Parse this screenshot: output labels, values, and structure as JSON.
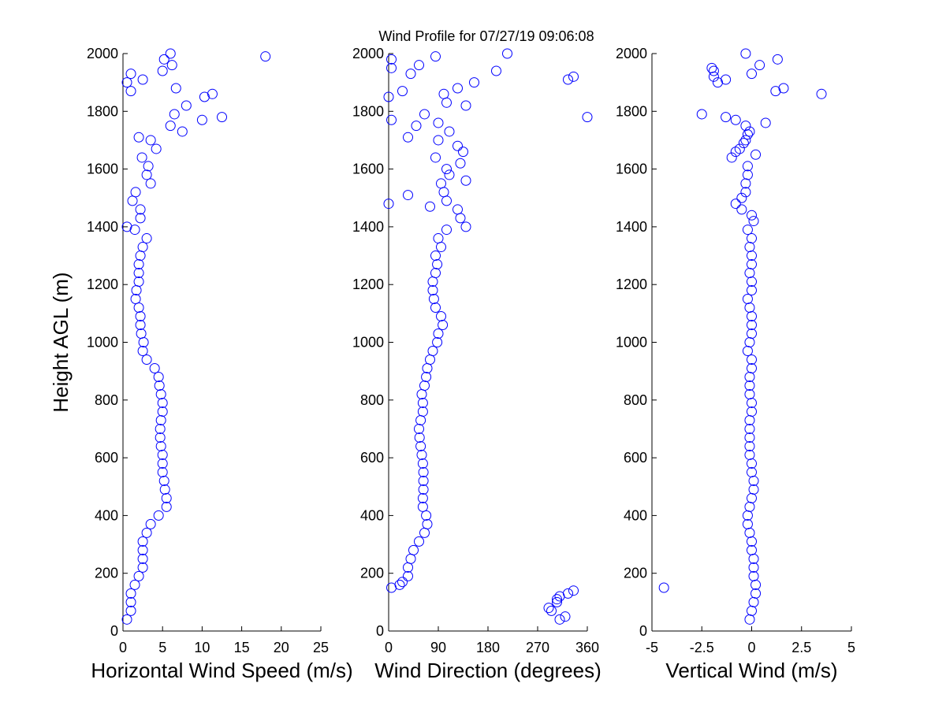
{
  "chart_data": [
    {
      "type": "scatter",
      "ylabel": "Height AGL (m)",
      "xlabel": "Horizontal Wind Speed (m/s)",
      "color": "#0000ff",
      "xlim": [
        0,
        25
      ],
      "xticks": [
        0,
        5,
        10,
        15,
        20,
        25
      ],
      "ylim": [
        0,
        2000
      ],
      "yticks": [
        0,
        200,
        400,
        600,
        800,
        1000,
        1200,
        1400,
        1600,
        1800,
        2000
      ],
      "y": [
        40,
        70,
        100,
        130,
        160,
        190,
        220,
        250,
        280,
        310,
        340,
        370,
        400,
        430,
        460,
        490,
        520,
        550,
        580,
        610,
        640,
        670,
        700,
        730,
        760,
        790,
        820,
        850,
        880,
        910,
        940,
        970,
        1000,
        1030,
        1060,
        1090,
        1120,
        1150,
        1180,
        1210,
        1240,
        1270,
        1300,
        1330,
        1360,
        1390,
        1400,
        1430,
        1460,
        1490,
        1520,
        1550,
        1580,
        1610,
        1640,
        1670,
        1700,
        1710,
        1730,
        1750,
        1770,
        1780,
        1790,
        1820,
        1850,
        1860,
        1870,
        1880,
        1900,
        1910,
        1930,
        1940,
        1960,
        1980,
        1990,
        2000
      ],
      "x": [
        0.5,
        1,
        1,
        1,
        1.5,
        2,
        2.5,
        2.5,
        2.5,
        2.5,
        3,
        3.5,
        4.5,
        5.5,
        5.5,
        5.3,
        5.2,
        5,
        5,
        5,
        4.8,
        4.7,
        4.7,
        4.8,
        5,
        5,
        4.8,
        4.6,
        4.5,
        4,
        3,
        2.5,
        2.6,
        2.3,
        2.2,
        2.2,
        2,
        1.6,
        1.7,
        2,
        2,
        2,
        2.2,
        2.5,
        3,
        1.5,
        0.5,
        2.2,
        2.2,
        1.2,
        1.6,
        3.5,
        3,
        3.2,
        2.4,
        4.2,
        3.5,
        2,
        7.5,
        6,
        10,
        12.5,
        6.5,
        8,
        10.3,
        11.3,
        1,
        6.7,
        0.5,
        2.5,
        1,
        5,
        6.2,
        5.2,
        18,
        6
      ]
    },
    {
      "type": "scatter",
      "title": "Wind Profile for  07/27/19 09:06:08",
      "xlabel": "Wind Direction (degrees)",
      "color": "#0000ff",
      "xlim": [
        0,
        360
      ],
      "xticks": [
        0,
        90,
        180,
        270,
        360
      ],
      "ylim": [
        0,
        2000
      ],
      "yticks": [
        0,
        200,
        400,
        600,
        800,
        1000,
        1200,
        1400,
        1600,
        1800,
        2000
      ],
      "y": [
        40,
        50,
        70,
        80,
        100,
        110,
        120,
        130,
        140,
        150,
        160,
        170,
        190,
        220,
        250,
        280,
        310,
        340,
        370,
        400,
        430,
        460,
        490,
        520,
        550,
        580,
        610,
        640,
        670,
        700,
        730,
        760,
        790,
        820,
        850,
        880,
        910,
        940,
        970,
        1000,
        1030,
        1060,
        1090,
        1120,
        1150,
        1180,
        1210,
        1240,
        1270,
        1300,
        1330,
        1360,
        1390,
        1400,
        1430,
        1460,
        1470,
        1480,
        1490,
        1510,
        1520,
        1550,
        1560,
        1580,
        1600,
        1620,
        1640,
        1660,
        1680,
        1700,
        1710,
        1730,
        1750,
        1760,
        1770,
        1780,
        1790,
        1820,
        1830,
        1850,
        1860,
        1870,
        1880,
        1900,
        1910,
        1920,
        1930,
        1940,
        1950,
        1960,
        1980,
        1990,
        2000
      ],
      "x": [
        310,
        320,
        295,
        290,
        305,
        305,
        310,
        325,
        335,
        5,
        20,
        25,
        35,
        35,
        40,
        45,
        55,
        65,
        70,
        68,
        62,
        62,
        63,
        63,
        63,
        62,
        60,
        58,
        56,
        55,
        58,
        62,
        62,
        60,
        65,
        68,
        70,
        75,
        80,
        88,
        90,
        98,
        95,
        85,
        82,
        80,
        80,
        85,
        88,
        85,
        95,
        90,
        105,
        140,
        130,
        125,
        75,
        0,
        105,
        35,
        100,
        95,
        140,
        110,
        105,
        130,
        85,
        135,
        125,
        90,
        35,
        110,
        50,
        90,
        5,
        360,
        65,
        140,
        105,
        0,
        100,
        25,
        125,
        155,
        325,
        335,
        40,
        195,
        5,
        55,
        5,
        85,
        215
      ]
    },
    {
      "type": "scatter",
      "xlabel": "Vertical Wind (m/s)",
      "color": "#0000ff",
      "xlim": [
        -5,
        5
      ],
      "xticks": [
        -5,
        -2.5,
        0,
        2.5,
        5
      ],
      "ylim": [
        0,
        2000
      ],
      "yticks": [
        0,
        200,
        400,
        600,
        800,
        1000,
        1200,
        1400,
        1600,
        1800,
        2000
      ],
      "y": [
        40,
        70,
        100,
        130,
        150,
        160,
        190,
        220,
        250,
        280,
        310,
        340,
        370,
        400,
        430,
        460,
        490,
        520,
        550,
        580,
        610,
        640,
        670,
        700,
        730,
        760,
        790,
        820,
        850,
        880,
        910,
        940,
        970,
        1000,
        1030,
        1060,
        1090,
        1120,
        1150,
        1180,
        1210,
        1240,
        1270,
        1300,
        1330,
        1360,
        1390,
        1420,
        1440,
        1460,
        1480,
        1500,
        1520,
        1550,
        1580,
        1610,
        1640,
        1650,
        1660,
        1670,
        1690,
        1700,
        1720,
        1730,
        1750,
        1760,
        1770,
        1780,
        1790,
        1860,
        1870,
        1880,
        1900,
        1910,
        1920,
        1930,
        1940,
        1950,
        1960,
        1980,
        2000
      ],
      "x": [
        -0.1,
        0,
        0.1,
        0.2,
        -4.4,
        0.2,
        0.1,
        0.1,
        0.1,
        0,
        0,
        -0.1,
        -0.2,
        -0.2,
        -0.1,
        0,
        0.1,
        0.1,
        0,
        0,
        -0.1,
        -0.1,
        -0.1,
        -0.1,
        -0.1,
        0,
        0,
        -0.1,
        -0.1,
        -0.1,
        0,
        0,
        -0.2,
        -0.1,
        0,
        0,
        0,
        -0.1,
        -0.2,
        0,
        0,
        -0.1,
        0,
        0,
        -0.1,
        0,
        -0.2,
        0.1,
        0,
        -0.5,
        -0.8,
        -0.5,
        -0.3,
        -0.3,
        -0.2,
        -0.2,
        -1,
        0.2,
        -0.8,
        -0.6,
        -0.4,
        -0.3,
        -0.2,
        -0.1,
        -0.3,
        0.7,
        -0.8,
        -1.3,
        -2.5,
        3.5,
        1.2,
        1.6,
        -1.7,
        -1.3,
        -1.9,
        0,
        -1.9,
        -2,
        0.4,
        1.3,
        -0.3
      ]
    }
  ]
}
